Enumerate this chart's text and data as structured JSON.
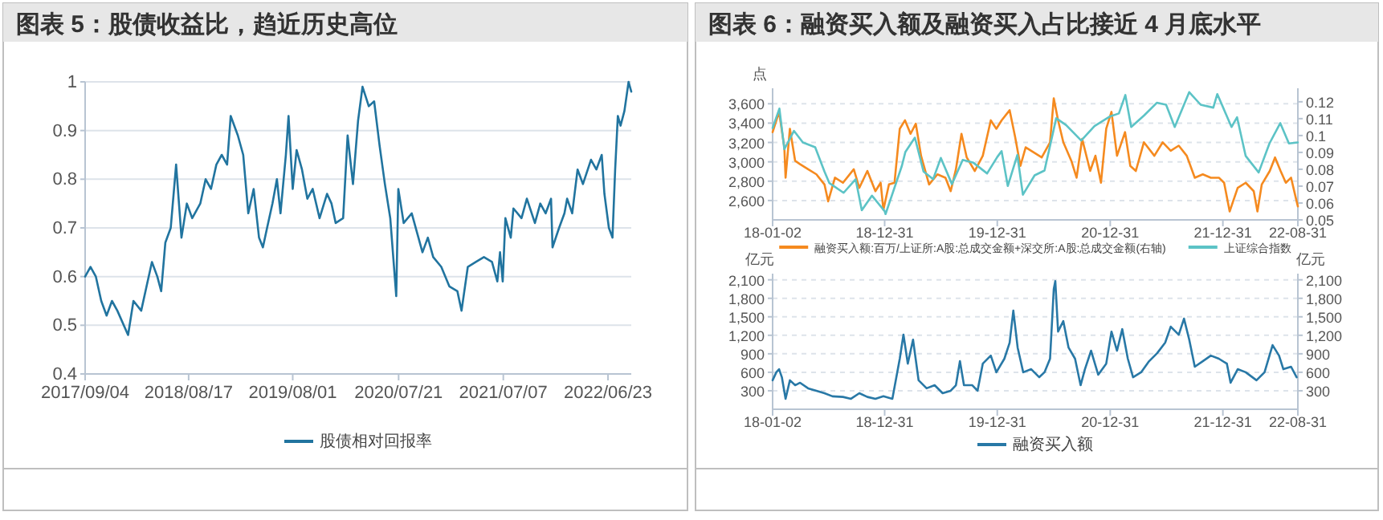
{
  "chart_data": [
    {
      "type": "line",
      "title": "图表 5：股债收益比，趋近历史高位",
      "xlim": [
        "2017-09-04",
        "2022-09-09"
      ],
      "ylim": [
        0.4,
        1
      ],
      "yticks": [
        0.4,
        0.5,
        0.6,
        0.7,
        0.8,
        0.9,
        1
      ],
      "xticks": [
        {
          "value": "2017-09-04",
          "label": "2017/09/04"
        },
        {
          "value": "2018-08-17",
          "label": "2018/08/17"
        },
        {
          "value": "2019-08-01",
          "label": "2019/08/01"
        },
        {
          "value": "2020-07-21",
          "label": "2020/07/21"
        },
        {
          "value": "2021-07-07",
          "label": "2021/07/07"
        },
        {
          "value": "2022-06-23",
          "label": "2022/06/23"
        }
      ],
      "grid": "y",
      "legend": "bottom",
      "series": [
        {
          "name": "股债相对回报率",
          "color": "#21749f",
          "x": [
            "2017-09-04",
            "2017-09-22",
            "2017-10-10",
            "2017-10-28",
            "2017-11-15",
            "2017-12-03",
            "2017-12-21",
            "2018-01-26",
            "2018-02-13",
            "2018-03-11",
            "2018-03-29",
            "2018-04-16",
            "2018-05-04",
            "2018-05-17",
            "2018-05-31",
            "2018-06-18",
            "2018-07-06",
            "2018-07-24",
            "2018-08-11",
            "2018-08-29",
            "2018-09-25",
            "2018-10-13",
            "2018-10-31",
            "2018-11-18",
            "2018-12-06",
            "2018-12-24",
            "2019-01-05",
            "2019-01-29",
            "2019-02-16",
            "2019-03-05",
            "2019-03-23",
            "2019-04-10",
            "2019-04-23",
            "2019-05-07",
            "2019-05-25",
            "2019-06-09",
            "2019-06-21",
            "2019-07-09",
            "2019-07-18",
            "2019-08-01",
            "2019-08-14",
            "2019-09-01",
            "2019-09-19",
            "2019-10-07",
            "2019-10-30",
            "2019-11-24",
            "2019-12-09",
            "2019-12-23",
            "2020-01-17",
            "2020-02-01",
            "2020-02-19",
            "2020-03-07",
            "2020-03-22",
            "2020-04-12",
            "2020-04-30",
            "2020-05-18",
            "2020-06-05",
            "2020-06-23",
            "2020-07-08",
            "2020-07-13",
            "2020-07-20",
            "2020-08-07",
            "2020-09-03",
            "2020-09-21",
            "2020-10-09",
            "2020-10-27",
            "2020-11-14",
            "2020-12-11",
            "2021-01-07",
            "2021-02-03",
            "2021-02-17",
            "2021-03-10",
            "2021-04-06",
            "2021-05-03",
            "2021-05-30",
            "2021-06-17",
            "2021-06-26",
            "2021-07-05",
            "2021-07-14",
            "2021-08-01",
            "2021-08-10",
            "2021-09-06",
            "2021-09-24",
            "2021-10-21",
            "2021-11-08",
            "2021-11-26",
            "2021-12-14",
            "2021-12-19",
            "2022-01-10",
            "2022-01-28",
            "2022-02-06",
            "2022-02-23",
            "2022-03-13",
            "2022-03-31",
            "2022-04-27",
            "2022-05-15",
            "2022-06-02",
            "2022-06-11",
            "2022-06-26",
            "2022-07-08",
            "2022-07-17",
            "2022-07-26",
            "2022-08-04",
            "2022-08-17",
            "2022-08-31",
            "2022-09-09"
          ],
          "values": [
            0.6,
            0.62,
            0.6,
            0.55,
            0.52,
            0.55,
            0.53,
            0.48,
            0.55,
            0.53,
            0.58,
            0.63,
            0.6,
            0.57,
            0.67,
            0.7,
            0.83,
            0.68,
            0.75,
            0.72,
            0.75,
            0.8,
            0.78,
            0.83,
            0.85,
            0.83,
            0.93,
            0.89,
            0.85,
            0.73,
            0.78,
            0.68,
            0.66,
            0.7,
            0.75,
            0.8,
            0.73,
            0.85,
            0.93,
            0.78,
            0.86,
            0.82,
            0.76,
            0.78,
            0.72,
            0.77,
            0.75,
            0.71,
            0.72,
            0.89,
            0.79,
            0.92,
            0.99,
            0.95,
            0.96,
            0.87,
            0.79,
            0.72,
            0.6,
            0.56,
            0.78,
            0.71,
            0.73,
            0.69,
            0.65,
            0.68,
            0.64,
            0.62,
            0.58,
            0.57,
            0.53,
            0.62,
            0.63,
            0.64,
            0.63,
            0.59,
            0.65,
            0.59,
            0.72,
            0.68,
            0.74,
            0.72,
            0.76,
            0.71,
            0.75,
            0.73,
            0.76,
            0.66,
            0.7,
            0.73,
            0.76,
            0.73,
            0.82,
            0.79,
            0.84,
            0.82,
            0.85,
            0.77,
            0.7,
            0.68,
            0.82,
            0.93,
            0.91,
            0.94,
            1.0,
            0.98
          ]
        }
      ]
    },
    {
      "type": "line",
      "title": "图表 6：融资买入额及融资买入占比接近 4 月底水平",
      "ylabel": "点",
      "xlim": [
        "2018-01-02",
        "2022-08-31"
      ],
      "ylim": [
        2400,
        3760
      ],
      "y2lim": [
        0.05,
        0.128
      ],
      "xticks": [
        {
          "value": "2018-01-02",
          "label": "18-01-02"
        },
        {
          "value": "2018-12-31",
          "label": "18-12-31"
        },
        {
          "value": "2019-12-31",
          "label": "19-12-31"
        },
        {
          "value": "2020-12-31",
          "label": "20-12-31"
        },
        {
          "value": "2021-12-31",
          "label": "21-12-31"
        },
        {
          "value": "2022-08-31",
          "label": "22-08-31"
        }
      ],
      "yticks": [
        {
          "value": 2600,
          "label": "2,600"
        },
        {
          "value": 2800,
          "label": "2,800"
        },
        {
          "value": 3000,
          "label": "3,000"
        },
        {
          "value": 3200,
          "label": "3,200"
        },
        {
          "value": 3400,
          "label": "3,400"
        },
        {
          "value": 3600,
          "label": "3,600"
        }
      ],
      "y2ticks": [
        0.05,
        0.06,
        0.07,
        0.08,
        0.09,
        0.1,
        0.11,
        0.12
      ],
      "grid": "y",
      "legend": "bottom",
      "series": [
        {
          "name": "融资买入额:百万/上证所:A股:总成交金额+深交所:A股:总成交金额(右轴)",
          "color": "#f58a1f",
          "axis": "y2",
          "x": [
            "2018-01-02",
            "2018-01-23",
            "2018-02-09",
            "2018-02-13",
            "2018-02-27",
            "2018-03-16",
            "2018-04-01",
            "2018-04-27",
            "2018-05-24",
            "2018-06-19",
            "2018-07-01",
            "2018-07-23",
            "2018-08-18",
            "2018-09-22",
            "2018-10-10",
            "2018-11-05",
            "2018-12-01",
            "2018-12-18",
            "2018-12-27",
            "2019-01-14",
            "2019-02-01",
            "2019-02-18",
            "2019-03-07",
            "2019-03-25",
            "2019-04-11",
            "2019-04-28",
            "2019-05-24",
            "2019-06-20",
            "2019-07-16",
            "2019-08-02",
            "2019-08-19",
            "2019-09-06",
            "2019-09-23",
            "2019-10-19",
            "2019-11-14",
            "2019-12-10",
            "2019-12-28",
            "2020-01-14",
            "2020-02-09",
            "2020-02-27",
            "2020-03-15",
            "2020-04-01",
            "2020-04-27",
            "2020-05-23",
            "2020-06-19",
            "2020-07-01",
            "2020-07-15",
            "2020-08-01",
            "2020-08-27",
            "2020-09-13",
            "2020-10-01",
            "2020-10-27",
            "2020-11-13",
            "2020-12-01",
            "2020-12-18",
            "2021-01-04",
            "2021-01-22",
            "2021-02-17",
            "2021-03-06",
            "2021-03-24",
            "2021-04-19",
            "2021-05-23",
            "2021-06-19",
            "2021-07-15",
            "2021-08-10",
            "2021-09-05",
            "2021-10-01",
            "2021-10-27",
            "2021-11-22",
            "2021-12-18",
            "2022-01-04",
            "2022-01-22",
            "2022-02-17",
            "2022-03-15",
            "2022-04-10",
            "2022-04-22",
            "2022-05-06",
            "2022-06-01",
            "2022-06-18",
            "2022-07-06",
            "2022-07-23",
            "2022-08-09",
            "2022-08-27",
            "2022-08-31"
          ],
          "values": [
            0.102,
            0.114,
            0.093,
            0.075,
            0.104,
            0.085,
            0.083,
            0.08,
            0.077,
            0.071,
            0.061,
            0.075,
            0.072,
            0.08,
            0.069,
            0.079,
            0.067,
            0.072,
            0.056,
            0.071,
            0.072,
            0.104,
            0.109,
            0.101,
            0.107,
            0.088,
            0.071,
            0.077,
            0.075,
            0.067,
            0.08,
            0.101,
            0.087,
            0.079,
            0.088,
            0.109,
            0.104,
            0.109,
            0.115,
            0.099,
            0.082,
            0.093,
            0.09,
            0.087,
            0.096,
            0.122,
            0.109,
            0.096,
            0.085,
            0.075,
            0.098,
            0.079,
            0.088,
            0.072,
            0.104,
            0.114,
            0.088,
            0.102,
            0.082,
            0.079,
            0.096,
            0.088,
            0.096,
            0.091,
            0.094,
            0.088,
            0.075,
            0.077,
            0.075,
            0.075,
            0.072,
            0.055,
            0.069,
            0.072,
            0.067,
            0.055,
            0.071,
            0.079,
            0.087,
            0.079,
            0.072,
            0.075,
            0.061,
            0.058
          ]
        },
        {
          "name": "上证综合指数",
          "color": "#5cc3c6",
          "x": [
            "2018-01-02",
            "2018-01-24",
            "2018-02-09",
            "2018-03-12",
            "2018-04-10",
            "2018-05-20",
            "2018-06-19",
            "2018-07-05",
            "2018-08-20",
            "2018-09-28",
            "2018-10-18",
            "2018-11-20",
            "2018-12-31",
            "2019-01-03",
            "2019-02-25",
            "2019-03-08",
            "2019-04-08",
            "2019-05-06",
            "2019-06-06",
            "2019-07-01",
            "2019-08-06",
            "2019-09-10",
            "2019-10-15",
            "2019-11-28",
            "2019-12-31",
            "2020-01-14",
            "2020-02-03",
            "2020-03-05",
            "2020-03-23",
            "2020-04-30",
            "2020-06-01",
            "2020-07-09",
            "2020-08-10",
            "2020-09-28",
            "2020-11-10",
            "2020-12-31",
            "2021-01-28",
            "2021-02-18",
            "2021-03-09",
            "2021-04-20",
            "2021-05-31",
            "2021-06-30",
            "2021-07-28",
            "2021-09-13",
            "2021-10-20",
            "2021-11-30",
            "2021-12-13",
            "2022-01-28",
            "2022-02-15",
            "2022-03-15",
            "2022-04-26",
            "2022-05-31",
            "2022-07-05",
            "2022-08-02",
            "2022-08-31"
          ],
          "values": [
            3350,
            3550,
            3130,
            3320,
            3200,
            3150,
            2900,
            2780,
            2680,
            2820,
            2500,
            2650,
            2490,
            2460,
            2960,
            3100,
            3250,
            2900,
            2820,
            3040,
            2770,
            3020,
            2990,
            2880,
            3050,
            3110,
            2750,
            3070,
            2660,
            2860,
            2910,
            3450,
            3380,
            3220,
            3370,
            3470,
            3500,
            3690,
            3360,
            3480,
            3610,
            3590,
            3360,
            3720,
            3590,
            3560,
            3700,
            3360,
            3460,
            3060,
            2890,
            3190,
            3400,
            3190,
            3200
          ]
        }
      ]
    },
    {
      "type": "line",
      "ylabel": "亿元",
      "y2label": "亿元",
      "xlim": [
        "2018-01-02",
        "2022-08-31"
      ],
      "ylim": [
        0,
        2200
      ],
      "y2lim": [
        0,
        2200
      ],
      "xticks": [
        {
          "value": "2018-01-02",
          "label": "18-01-02"
        },
        {
          "value": "2018-12-31",
          "label": "18-12-31"
        },
        {
          "value": "2019-12-31",
          "label": "19-12-31"
        },
        {
          "value": "2020-12-31",
          "label": "20-12-31"
        },
        {
          "value": "2021-12-31",
          "label": "21-12-31"
        },
        {
          "value": "2022-08-31",
          "label": "22-08-31"
        }
      ],
      "yticks": [
        {
          "value": 300,
          "label": "300"
        },
        {
          "value": 600,
          "label": "600"
        },
        {
          "value": 900,
          "label": "900"
        },
        {
          "value": 1200,
          "label": "1,200"
        },
        {
          "value": 1500,
          "label": "1,500"
        },
        {
          "value": 1800,
          "label": "1,800"
        },
        {
          "value": 2100,
          "label": "2,100"
        }
      ],
      "y2ticks": [
        {
          "value": 300,
          "label": "300"
        },
        {
          "value": 600,
          "label": "600"
        },
        {
          "value": 900,
          "label": "900"
        },
        {
          "value": 1200,
          "label": "1,200"
        },
        {
          "value": 1500,
          "label": "1,500"
        },
        {
          "value": 1800,
          "label": "1,800"
        },
        {
          "value": 2100,
          "label": "2,100"
        }
      ],
      "grid": "y",
      "legend": "bottom",
      "series": [
        {
          "name": "融资买入额",
          "color": "#2878a6",
          "x": [
            "2018-01-02",
            "2018-01-14",
            "2018-01-23",
            "2018-02-01",
            "2018-02-13",
            "2018-02-27",
            "2018-03-16",
            "2018-04-01",
            "2018-04-27",
            "2018-05-24",
            "2018-06-19",
            "2018-07-15",
            "2018-08-18",
            "2018-09-13",
            "2018-10-10",
            "2018-11-05",
            "2018-12-01",
            "2018-12-27",
            "2019-01-25",
            "2019-02-18",
            "2019-03-02",
            "2019-03-16",
            "2019-04-02",
            "2019-04-20",
            "2019-05-16",
            "2019-06-11",
            "2019-07-07",
            "2019-08-02",
            "2019-08-19",
            "2019-09-01",
            "2019-09-14",
            "2019-10-11",
            "2019-10-28",
            "2019-11-14",
            "2019-12-10",
            "2019-12-28",
            "2020-01-23",
            "2020-02-09",
            "2020-02-21",
            "2020-03-06",
            "2020-03-24",
            "2020-04-19",
            "2020-05-15",
            "2020-06-01",
            "2020-06-19",
            "2020-07-01",
            "2020-07-06",
            "2020-07-15",
            "2020-08-01",
            "2020-08-18",
            "2020-09-08",
            "2020-09-26",
            "2020-10-10",
            "2020-10-30",
            "2020-11-22",
            "2020-12-18",
            "2021-01-04",
            "2021-01-22",
            "2021-02-08",
            "2021-02-26",
            "2021-03-15",
            "2021-04-10",
            "2021-05-06",
            "2021-06-01",
            "2021-06-27",
            "2021-07-15",
            "2021-08-10",
            "2021-08-27",
            "2021-09-13",
            "2021-10-01",
            "2021-10-27",
            "2021-11-22",
            "2021-12-18",
            "2022-01-13",
            "2022-01-25",
            "2022-02-17",
            "2022-03-15",
            "2022-04-19",
            "2022-05-15",
            "2022-06-10",
            "2022-07-01",
            "2022-07-15",
            "2022-08-09",
            "2022-08-27"
          ],
          "values": [
            470,
            600,
            650,
            520,
            170,
            470,
            390,
            430,
            340,
            300,
            260,
            210,
            200,
            170,
            260,
            200,
            170,
            210,
            170,
            820,
            1210,
            740,
            1130,
            470,
            340,
            390,
            260,
            300,
            390,
            780,
            390,
            390,
            300,
            740,
            870,
            600,
            820,
            1080,
            1600,
            1000,
            600,
            650,
            520,
            600,
            820,
            1950,
            2080,
            1260,
            1430,
            1000,
            820,
            390,
            650,
            950,
            560,
            740,
            1260,
            950,
            1300,
            820,
            520,
            600,
            780,
            910,
            1080,
            1340,
            1210,
            1470,
            1130,
            690,
            780,
            870,
            820,
            740,
            430,
            650,
            600,
            470,
            600,
            1040,
            870,
            650,
            690,
            520
          ]
        }
      ]
    }
  ]
}
